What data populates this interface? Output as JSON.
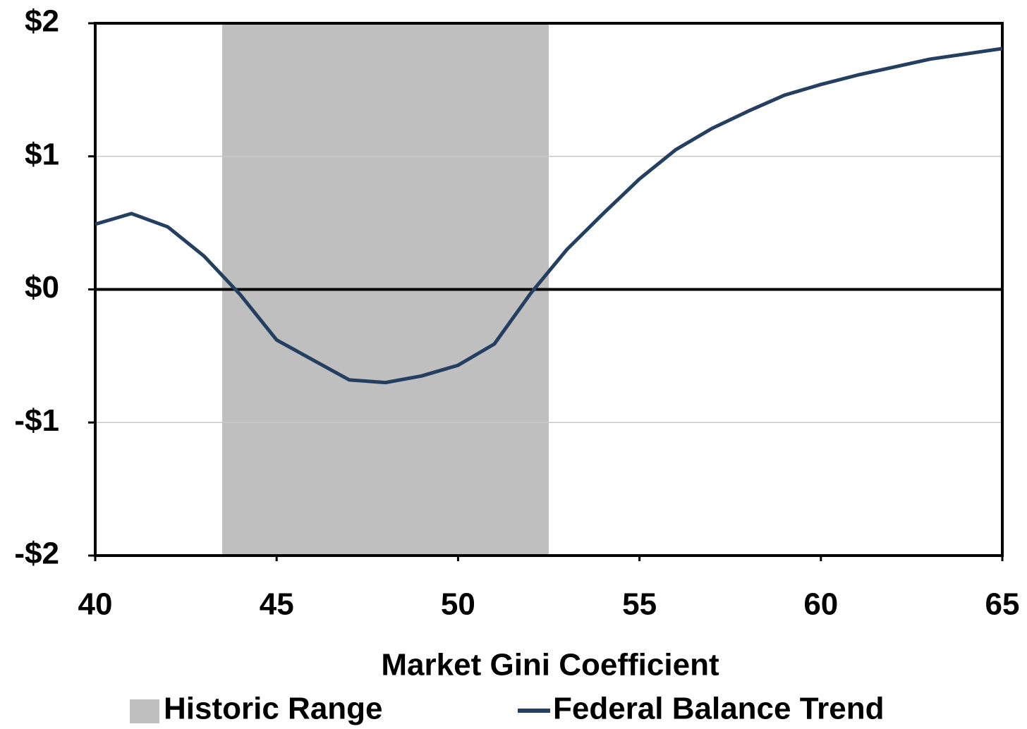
{
  "chart_data": {
    "type": "line",
    "xlabel": "Market Gini Coefficient",
    "x": [
      40,
      41,
      42,
      43,
      44,
      45,
      46,
      47,
      48,
      49,
      50,
      51,
      52,
      53,
      54,
      55,
      56,
      57,
      58,
      59,
      60,
      61,
      62,
      63,
      64,
      65
    ],
    "series": [
      {
        "name": "Federal Balance Trend",
        "color": "#243f60",
        "values": [
          0.49,
          0.57,
          0.47,
          0.25,
          -0.04,
          -0.38,
          -0.53,
          -0.68,
          -0.7,
          -0.65,
          -0.57,
          -0.41,
          -0.03,
          0.3,
          0.57,
          0.83,
          1.05,
          1.21,
          1.34,
          1.46,
          1.54,
          1.61,
          1.67,
          1.73,
          1.77,
          1.81
        ]
      }
    ],
    "shaded_region": {
      "name": "Historic Range",
      "x": [
        43.5,
        52.5
      ],
      "color": "#bfbfbf"
    },
    "xlim": [
      40,
      65
    ],
    "xticks": [
      40,
      45,
      50,
      55,
      60,
      65
    ],
    "ylim": [
      -2,
      2
    ],
    "yticks": [
      {
        "value": -2,
        "label": "-$2"
      },
      {
        "value": -1,
        "label": "-$1"
      },
      {
        "value": 0,
        "label": "$0"
      },
      {
        "value": 1,
        "label": "$1"
      },
      {
        "value": 2,
        "label": "$2"
      }
    ],
    "grid": true,
    "legend": "bottom"
  }
}
